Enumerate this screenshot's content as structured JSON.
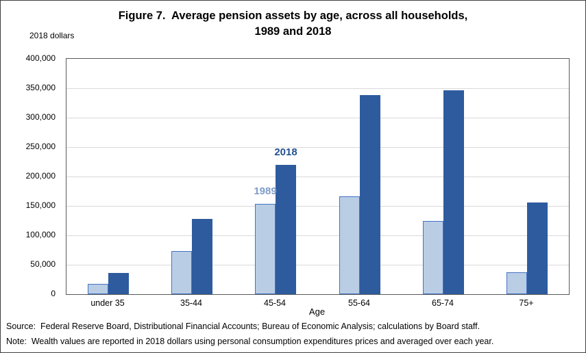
{
  "figure": {
    "title_line1": "Figure 7.  Average pension assets by age, across all households,",
    "title_line2": "1989 and 2018",
    "y_unit_label": "2018 dollars"
  },
  "footer": {
    "source": "Source:  Federal Reserve Board, Distributional Financial Accounts; Bureau of Economic Analysis; calculations by Board staff.",
    "note": "Note:  Wealth values are reported in 2018 dollars using personal consumption expenditures prices and averaged over each year."
  },
  "chart_data": {
    "type": "bar",
    "title": "Figure 7. Average pension assets by age, across all households, 1989 and 2018",
    "xlabel": "Age",
    "ylabel": "2018 dollars",
    "categories": [
      "under 35",
      "35-44",
      "45-54",
      "55-64",
      "65-74",
      "75+"
    ],
    "series": [
      {
        "name": "1989",
        "color": "#b9cde5",
        "border": "#4472c4",
        "values": [
          17000,
          73000,
          153000,
          166000,
          124000,
          37000
        ]
      },
      {
        "name": "2018",
        "color": "#2e5b9e",
        "border": "#2e5b9e",
        "values": [
          36000,
          128000,
          220000,
          338000,
          347000,
          156000
        ]
      }
    ],
    "ylim": [
      0,
      400000
    ],
    "ytick_step": 50000,
    "grid": true,
    "legend_position": "none",
    "annotations": [
      {
        "text": "1989",
        "series": 0,
        "category_index": 2,
        "color": "#7f9dc9"
      },
      {
        "text": "2018",
        "series": 1,
        "category_index": 2,
        "color": "#24518f"
      }
    ]
  }
}
